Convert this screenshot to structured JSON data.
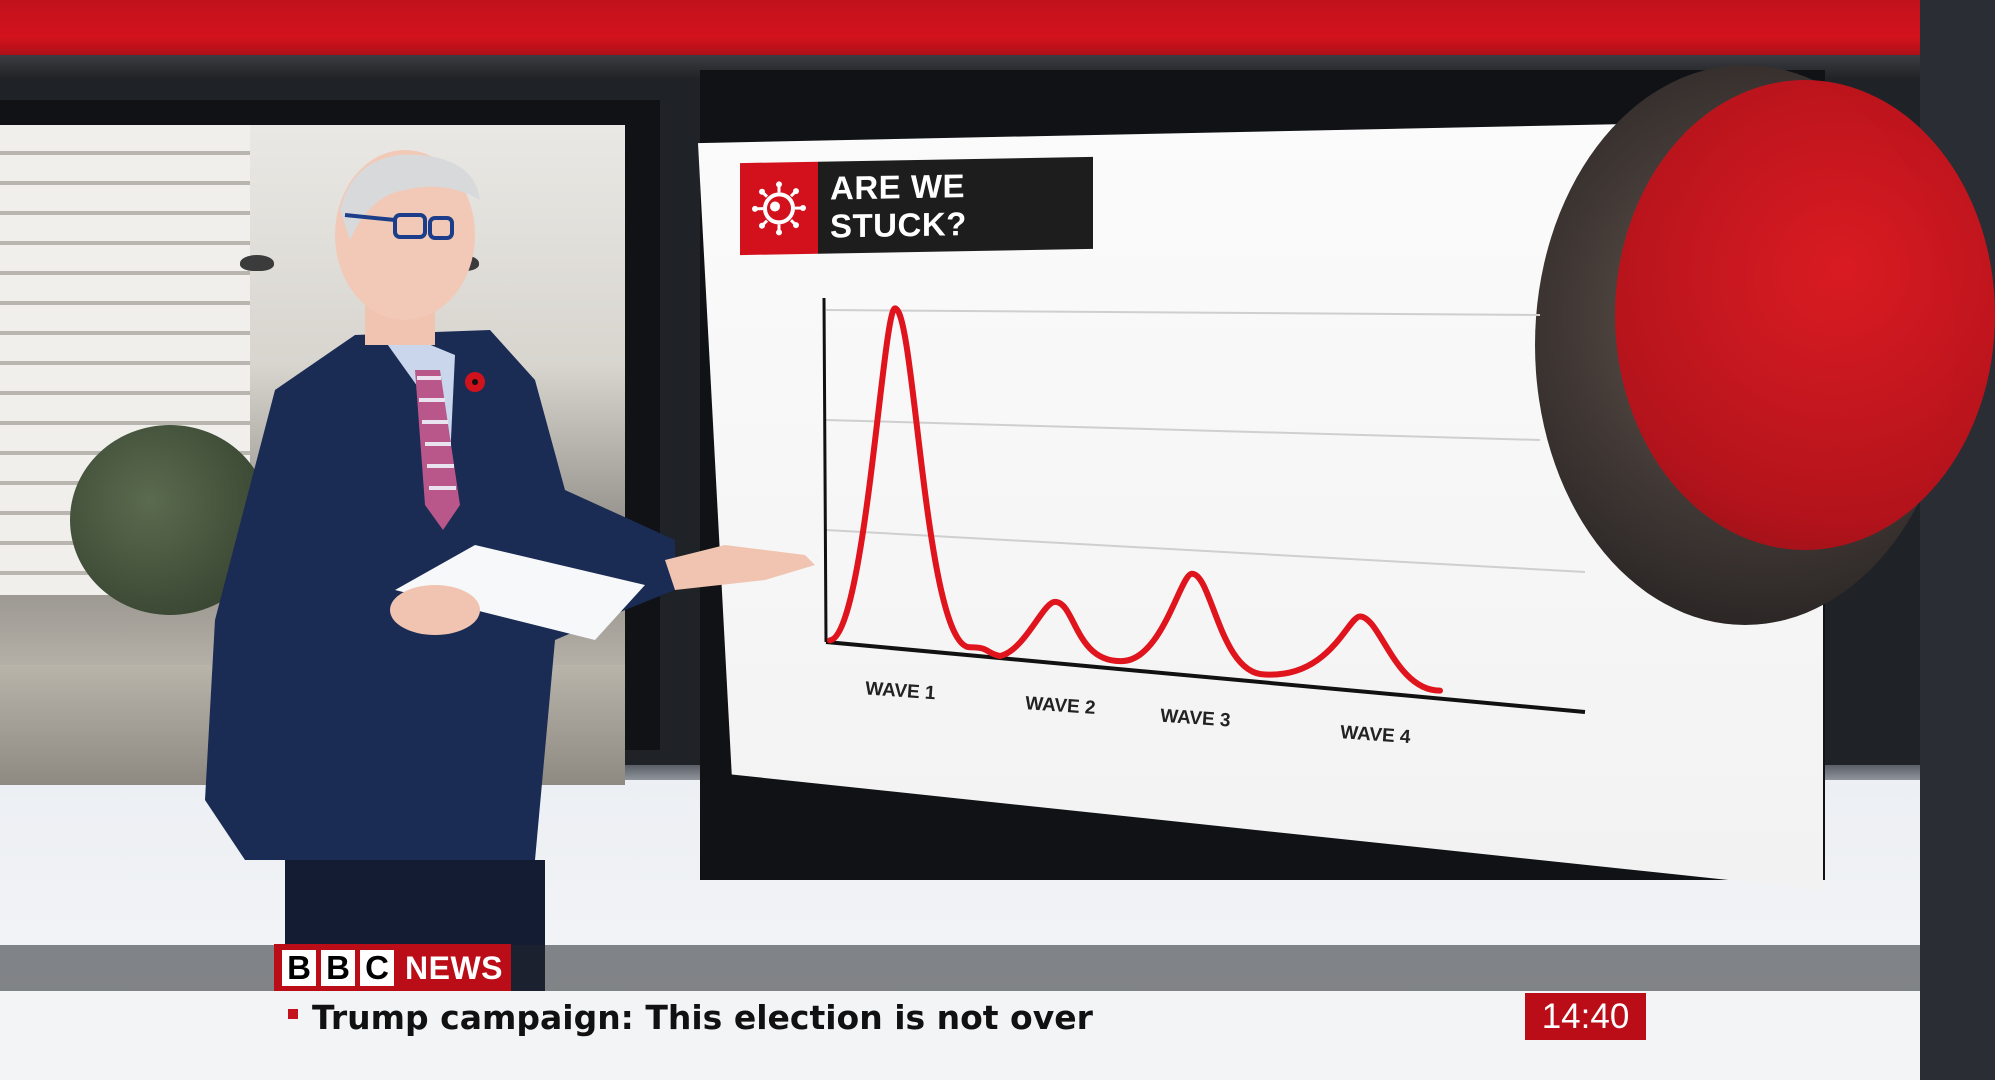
{
  "graphic": {
    "title": "ARE WE STUCK?",
    "title_icon": "virus-icon",
    "colors": {
      "accent_red": "#d2111c",
      "title_bg": "#1d1d1d",
      "curve": "#e0141c"
    }
  },
  "chart_data": {
    "type": "line",
    "title": "ARE WE STUCK?",
    "categories": [
      "WAVE 1",
      "WAVE 2",
      "WAVE 3",
      "WAVE 4"
    ],
    "series": [
      {
        "values": [
          100,
          18,
          30,
          22
        ]
      }
    ],
    "grid": true,
    "legend": "none"
  },
  "lower_third": {
    "logo_letters": [
      "B",
      "B",
      "C"
    ],
    "logo_word": "NEWS",
    "headline": "Trump campaign: This election is not over",
    "clock": "14:40",
    "colors": {
      "brand_red": "#bb0d18"
    }
  }
}
